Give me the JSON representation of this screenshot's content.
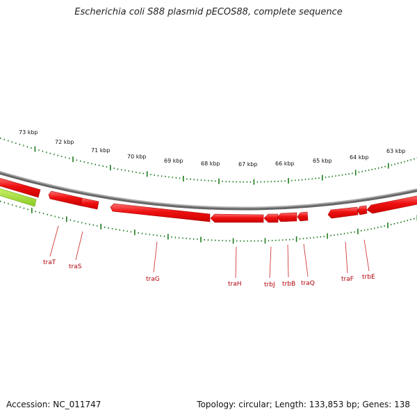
{
  "title": "Escherichia coli S88 plasmid pECOS88, complete sequence",
  "footer": {
    "accession": "Accession: NC_011747",
    "summary": "Topology: circular; Length: 133,853 bp; Genes: 138"
  },
  "colors": {
    "gene": "#ee1111",
    "gene_highlight": "#ff8080",
    "gene_shadow": "#aa0000",
    "green_feature": "#99dd33",
    "backbone": "#888888",
    "tick": "#1a7a1a",
    "label_line": "#cc2222"
  },
  "kbp_labels": [
    "73 kbp",
    "72 kbp",
    "71 kbp",
    "70 kbp",
    "69 kbp",
    "68 kbp",
    "67 kbp",
    "66 kbp",
    "65 kbp",
    "64 kbp",
    "63 kbp"
  ],
  "gene_labels": [
    "traT",
    "traS",
    "traG",
    "traH",
    "trbJ",
    "trbB",
    "traQ",
    "traF",
    "trbE"
  ]
}
